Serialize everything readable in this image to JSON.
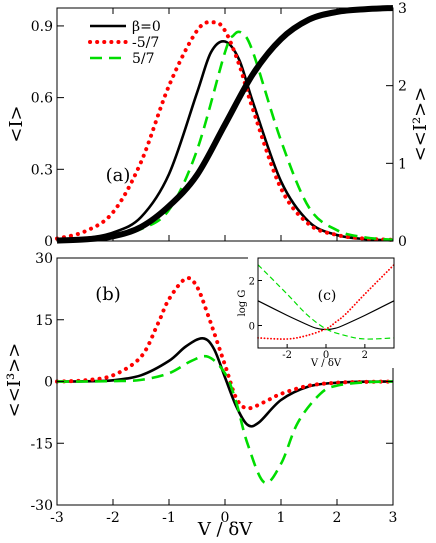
{
  "chart_data": [
    {
      "id": "a",
      "type": "line",
      "panel_label": "(a)",
      "xlabel": "",
      "ylabel": "<I>",
      "y2label": "<<I²>>",
      "xlim": [
        -3,
        3
      ],
      "ylim": [
        0,
        0.975
      ],
      "y2lim": [
        0,
        3
      ],
      "yticks": [
        "0",
        "0.3",
        "0.6",
        "0.9"
      ],
      "y2ticks": [
        "0",
        "1",
        "2",
        "3"
      ],
      "legend": {
        "placement": "top-left",
        "entries": [
          "β=0",
          "-5/7",
          "5/7"
        ]
      },
      "series": [
        {
          "name": "β=0",
          "axis": "left",
          "color": "#000000",
          "dash": "solid",
          "x": [
            -3,
            -2.5,
            -2,
            -1.5,
            -1,
            -0.5,
            -0.25,
            0,
            0.25,
            0.5,
            1,
            1.5,
            2,
            2.5,
            3
          ],
          "values": [
            0.005,
            0.012,
            0.035,
            0.1,
            0.28,
            0.62,
            0.79,
            0.835,
            0.76,
            0.58,
            0.25,
            0.08,
            0.025,
            0.008,
            0.003
          ]
        },
        {
          "name": "-5/7",
          "axis": "left",
          "color": "#ff0000",
          "dash": "dotted",
          "x": [
            -3,
            -2.5,
            -2,
            -1.5,
            -1,
            -0.5,
            -0.2,
            0,
            0.25,
            0.5,
            1,
            1.5,
            2,
            2.5,
            3
          ],
          "values": [
            0.01,
            0.04,
            0.12,
            0.33,
            0.65,
            0.88,
            0.915,
            0.88,
            0.74,
            0.55,
            0.22,
            0.07,
            0.025,
            0.01,
            0.005
          ]
        },
        {
          "name": "5/7",
          "axis": "left",
          "color": "#00dd00",
          "dash": "dashed",
          "x": [
            -3,
            -2.5,
            -2,
            -1.5,
            -1,
            -0.5,
            0,
            0.15,
            0.3,
            0.5,
            1,
            1.5,
            2,
            2.5,
            3
          ],
          "values": [
            0.003,
            0.01,
            0.02,
            0.05,
            0.13,
            0.38,
            0.79,
            0.86,
            0.87,
            0.79,
            0.42,
            0.14,
            0.045,
            0.015,
            0.005
          ]
        },
        {
          "name": "<<I²>>",
          "axis": "right",
          "color": "#000000",
          "dash": "thick",
          "x": [
            -3,
            -2.5,
            -2,
            -1.5,
            -1,
            -0.5,
            0,
            0.5,
            1,
            1.5,
            2,
            2.5,
            3
          ],
          "values": [
            0.005,
            0.02,
            0.06,
            0.18,
            0.45,
            0.85,
            1.5,
            2.15,
            2.6,
            2.85,
            2.95,
            2.985,
            3.0
          ]
        }
      ]
    },
    {
      "id": "b",
      "type": "line",
      "panel_label": "(b)",
      "xlabel": "V / δV",
      "ylabel": "<<I³>>",
      "xlim": [
        -3,
        3
      ],
      "ylim": [
        -30,
        30
      ],
      "xticks": [
        "-3",
        "-2",
        "-1",
        "0",
        "1",
        "2",
        "3"
      ],
      "yticks": [
        "-30",
        "-15",
        "0",
        "15",
        "30"
      ],
      "series": [
        {
          "name": "β=0",
          "color": "#000000",
          "dash": "solid",
          "x": [
            -3,
            -2.5,
            -2,
            -1.5,
            -1,
            -0.7,
            -0.4,
            -0.2,
            0,
            0.2,
            0.4,
            0.6,
            1,
            1.5,
            2,
            2.5,
            3
          ],
          "values": [
            0,
            0.05,
            0.3,
            1.5,
            5,
            8.5,
            10.5,
            8,
            1,
            -6,
            -10.5,
            -10,
            -4.5,
            -1.2,
            -0.3,
            -0.05,
            0
          ]
        },
        {
          "name": "-5/7",
          "color": "#ff0000",
          "dash": "dotted",
          "x": [
            -3,
            -2.5,
            -2,
            -1.5,
            -1.2,
            -1,
            -0.7,
            -0.5,
            -0.3,
            0,
            0.2,
            0.4,
            0.7,
            1,
            1.5,
            2,
            2.5,
            3
          ],
          "values": [
            0,
            0.3,
            1.5,
            6,
            14,
            20,
            25,
            23,
            16,
            4,
            -4,
            -6.5,
            -5,
            -3,
            -1,
            -0.3,
            -0.1,
            0
          ]
        },
        {
          "name": "5/7",
          "color": "#00dd00",
          "dash": "dashed",
          "x": [
            -3,
            -2.5,
            -2,
            -1.5,
            -1,
            -0.6,
            -0.3,
            0,
            0.2,
            0.4,
            0.7,
            1,
            1.3,
            1.7,
            2,
            2.5,
            3
          ],
          "values": [
            0,
            0,
            0.1,
            0.4,
            2,
            5,
            6,
            2,
            -5,
            -15,
            -24.5,
            -20,
            -10,
            -3,
            -1,
            -0.2,
            0
          ]
        }
      ]
    },
    {
      "id": "c",
      "type": "line",
      "panel_label": "(c)",
      "xlabel": "V / δV",
      "ylabel": "log G",
      "xlim": [
        -3.5,
        3.5
      ],
      "ylim": [
        -1,
        3
      ],
      "xticks": [
        "-2",
        "0",
        "2"
      ],
      "yticks": [
        "0",
        "2"
      ],
      "series": [
        {
          "name": "β=0",
          "color": "#000000",
          "dash": "solid",
          "x": [
            -3.5,
            -2,
            -1,
            -0.5,
            0,
            0.5,
            1,
            2,
            3.5
          ],
          "values": [
            1.1,
            0.45,
            0.05,
            -0.12,
            -0.18,
            -0.12,
            0.05,
            0.45,
            1.1
          ]
        },
        {
          "name": "-5/7",
          "color": "#ff0000",
          "dash": "dotted",
          "x": [
            -3.5,
            -2,
            -1,
            0,
            0.5,
            1,
            2,
            3.5
          ],
          "values": [
            -0.55,
            -0.6,
            -0.45,
            -0.15,
            0.15,
            0.5,
            1.4,
            2.7
          ]
        },
        {
          "name": "5/7",
          "color": "#00dd00",
          "dash": "dashed",
          "x": [
            -3.5,
            -2,
            -1,
            0,
            1,
            2,
            3.5
          ],
          "values": [
            2.7,
            1.4,
            0.5,
            -0.15,
            -0.45,
            -0.6,
            -0.55
          ]
        }
      ]
    }
  ]
}
